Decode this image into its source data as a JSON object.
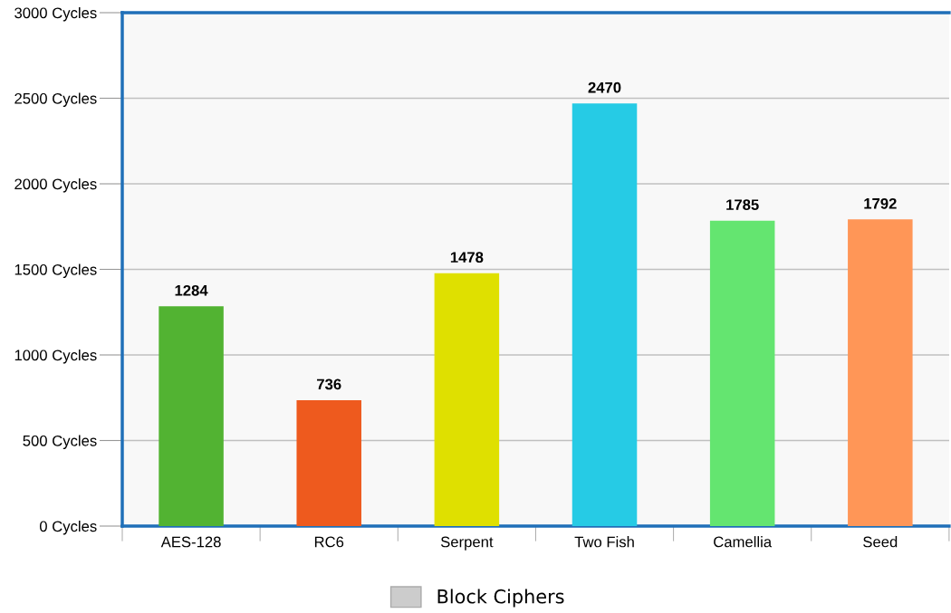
{
  "chart_data": {
    "type": "bar",
    "categories": [
      "AES-128",
      "RC6",
      "Serpent",
      "Two Fish",
      "Camellia",
      "Seed"
    ],
    "series": [
      {
        "name": "Block Ciphers",
        "color": "#cccccc",
        "colors": [
          "#52b332",
          "#ee5a1e",
          "#dfe000",
          "#26cbe5",
          "#64e570",
          "#ff9657"
        ],
        "values": [
          1284,
          736,
          1478,
          2470,
          1785,
          1792
        ]
      }
    ],
    "ylim": [
      0,
      3000
    ],
    "yticks": [
      {
        "value": 0,
        "label": "0 Cycles"
      },
      {
        "value": 500,
        "label": "500 Cycles"
      },
      {
        "value": 1000,
        "label": "1000 Cycles"
      },
      {
        "value": 1500,
        "label": "1500 Cycles"
      },
      {
        "value": 2000,
        "label": "2000 Cycles"
      },
      {
        "value": 2500,
        "label": "2500 Cycles"
      },
      {
        "value": 3000,
        "label": "3000 Cycles"
      }
    ],
    "grid": "y",
    "legend": "bottom",
    "data_labels": true
  }
}
